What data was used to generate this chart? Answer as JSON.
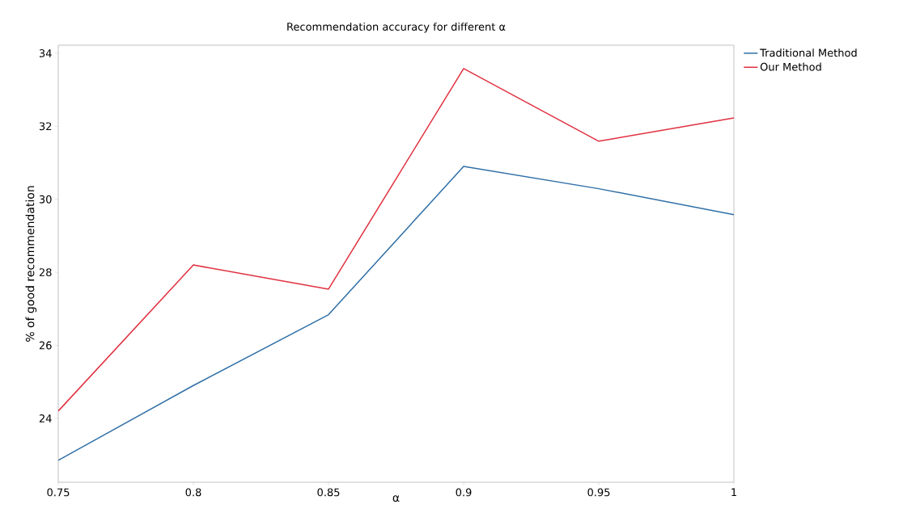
{
  "chart_data": {
    "type": "line",
    "title": "Recommendation accuracy for different α",
    "xlabel": "α",
    "ylabel": "% of good recommendation",
    "x": [
      0.75,
      0.8,
      0.85,
      0.9,
      0.95,
      1
    ],
    "series": [
      {
        "name": "Traditional Method",
        "color": "#2f6fa7",
        "values": [
          22.85,
          24.9,
          26.84,
          30.9,
          30.29,
          29.58
        ]
      },
      {
        "name": "Our Method",
        "color": "#e0303f",
        "values": [
          24.2,
          28.2,
          27.54,
          33.58,
          31.59,
          32.23
        ]
      }
    ],
    "xlim": [
      0.75,
      1
    ],
    "ylim": [
      22.25,
      34.22
    ],
    "xticks": [
      0.75,
      0.8,
      0.85,
      0.9,
      0.95,
      1
    ],
    "yticks": [
      24,
      26,
      28,
      30,
      32,
      34
    ],
    "grid": false,
    "legend": "top right",
    "marker": "none",
    "line_style": "solid"
  }
}
